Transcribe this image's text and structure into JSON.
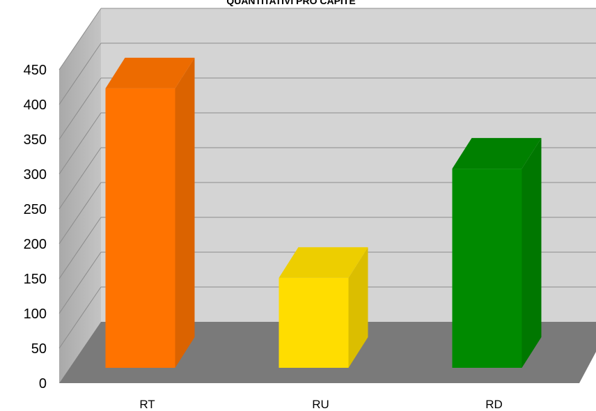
{
  "chart_data": {
    "type": "bar",
    "title": "QUANTITATIVI PRO CAPITE",
    "categories": [
      "RT",
      "RU",
      "RD"
    ],
    "values": [
      435,
      140,
      310
    ],
    "colors": [
      "#ff7300",
      "#ffdd00",
      "#008a00"
    ],
    "ylim": [
      0,
      450
    ],
    "yticks": [
      "0",
      "50",
      "100",
      "150",
      "200",
      "250",
      "300",
      "350",
      "400",
      "450"
    ],
    "grid": true,
    "three_d": true
  }
}
